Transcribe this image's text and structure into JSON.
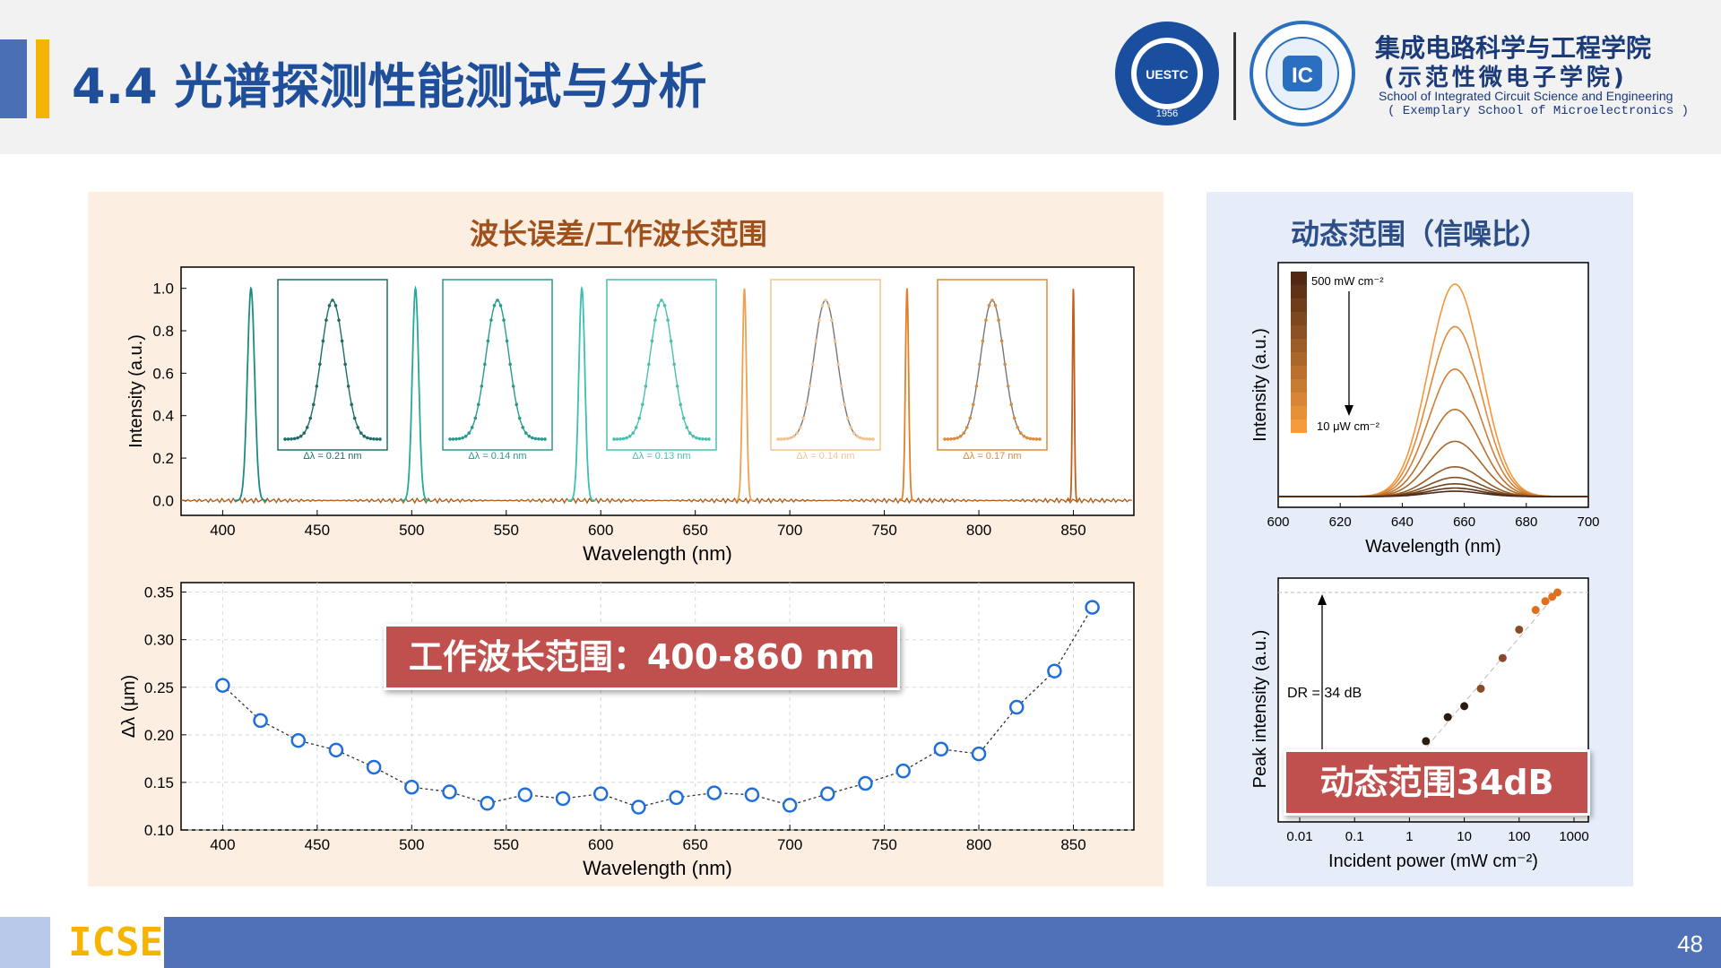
{
  "slide": {
    "title": "4.4 光谱探测性能测试与分析",
    "page_number": "48",
    "footer_label": "ICSE"
  },
  "header": {
    "school_cn_line1": "集成电路科学与工程学院",
    "school_cn_line2": "(示范性微电子学院)",
    "school_en_line1": "School of Integrated Circuit Science and Engineering",
    "school_en_line2": "( Exemplary School of Microelectronics )",
    "logo1_text": "UESTC",
    "logo1_year": "1956",
    "logo2_text": "IC"
  },
  "left_panel": {
    "title": "波长误差/工作波长范围",
    "callout": "工作波长范围：400-860 nm"
  },
  "right_panel": {
    "title": "动态范围（信噪比）",
    "callout": "动态范围34dB"
  },
  "colors": {
    "title_blue": "#1f4e9a",
    "left_title": "#a0501a",
    "right_title": "#2e4f86",
    "callout_red": "#c0504d",
    "footer_blue": "#4f71b7",
    "accent_yellow": "#f5b400"
  },
  "chart_data": [
    {
      "type": "line",
      "xlabel": "Wavelength (nm)",
      "ylabel": "Intensity (a.u.)",
      "xlim": [
        378,
        882
      ],
      "ylim": [
        -0.07,
        1.1
      ],
      "xticks": [
        400,
        450,
        500,
        550,
        600,
        650,
        700,
        750,
        800,
        850
      ],
      "yticks": [
        "0.0",
        "0.2",
        "0.4",
        "0.6",
        "0.8",
        "1.0"
      ],
      "peaks": [
        {
          "center": 415,
          "fwhm": 4.5,
          "color": "#1f8a80"
        },
        {
          "center": 502,
          "fwhm": 4.0,
          "color": "#28a89a"
        },
        {
          "center": 590,
          "fwhm": 3.8,
          "color": "#3cc0b0"
        },
        {
          "center": 676,
          "fwhm": 2.5,
          "color": "#f0a050"
        },
        {
          "center": 762,
          "fwhm": 2.0,
          "color": "#e0802a"
        },
        {
          "center": 850,
          "fwhm": 1.2,
          "color": "#c0601a"
        }
      ],
      "insets": [
        {
          "label": "Δλ = 0.21 nm",
          "color": "#1f6e68"
        },
        {
          "label": "Δλ = 0.14 nm",
          "color": "#2a9a8e"
        },
        {
          "label": "Δλ = 0.13 nm",
          "color": "#4cc0b0"
        },
        {
          "label": "Δλ = 0.14 nm",
          "color": "#f4c58e"
        },
        {
          "label": "Δλ = 0.17 nm",
          "color": "#e08a3a"
        }
      ]
    },
    {
      "type": "scatter",
      "xlabel": "Wavelength (nm)",
      "ylabel": "Δλ (μm)",
      "xlim": [
        378,
        882
      ],
      "ylim": [
        0.1,
        0.36
      ],
      "xticks": [
        400,
        450,
        500,
        550,
        600,
        650,
        700,
        750,
        800,
        850
      ],
      "yticks": [
        "0.10",
        "0.15",
        "0.20",
        "0.25",
        "0.30",
        "0.35"
      ],
      "x": [
        400,
        420,
        440,
        460,
        480,
        500,
        520,
        540,
        560,
        580,
        600,
        620,
        640,
        660,
        680,
        700,
        720,
        740,
        760,
        780,
        800,
        820,
        840,
        860
      ],
      "y": [
        0.252,
        0.215,
        0.194,
        0.184,
        0.166,
        0.145,
        0.14,
        0.128,
        0.137,
        0.133,
        0.138,
        0.124,
        0.134,
        0.139,
        0.137,
        0.126,
        0.138,
        0.149,
        0.162,
        0.185,
        0.18,
        0.229,
        0.267,
        0.334
      ]
    },
    {
      "type": "line",
      "xlabel": "Wavelength (nm)",
      "ylabel": "Intensity (a.u.)",
      "xlim": [
        600,
        700
      ],
      "xticks": [
        600,
        620,
        640,
        660,
        680,
        700
      ],
      "legend_top": "500 mW cm⁻²",
      "legend_bottom": "10 μW cm⁻²",
      "peak_center": 657,
      "peak_heights": [
        1.0,
        0.8,
        0.6,
        0.41,
        0.26,
        0.14,
        0.09,
        0.06,
        0.04,
        0.025
      ]
    },
    {
      "type": "scatter",
      "xlabel": "Incident power (mW cm⁻²)",
      "ylabel": "Peak intensity (a.u.)",
      "xscale": "log",
      "xticks": [
        "0.01",
        "0.1",
        "1",
        "10",
        "100",
        "1000"
      ],
      "annotation": "DR = 34 dB",
      "x": [
        0.01,
        0.02,
        0.05,
        0.1,
        0.2,
        0.5,
        1,
        2,
        5,
        10,
        20,
        50,
        100,
        200,
        300,
        400,
        500
      ],
      "y": [
        0.01,
        0.02,
        0.04,
        0.07,
        0.11,
        0.16,
        0.22,
        0.32,
        0.43,
        0.48,
        0.56,
        0.7,
        0.83,
        0.92,
        0.96,
        0.98,
        1.0
      ]
    }
  ]
}
